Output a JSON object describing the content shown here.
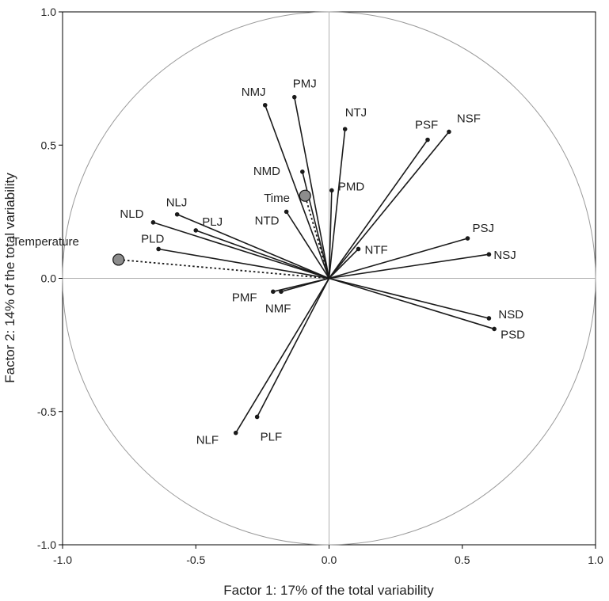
{
  "chart_data": {
    "type": "scatter",
    "subtype": "pca-correlation-circle",
    "xlabel": "Factor 1: 17% of the total variability",
    "ylabel": "Factor 2: 14% of the total variability",
    "xlim": [
      -1.0,
      1.0
    ],
    "ylim": [
      -1.0,
      1.0
    ],
    "xticks": [
      "-1.0",
      "-0.5",
      "0.0",
      "0.5",
      "1.0"
    ],
    "yticks": [
      "1.0",
      "0.5",
      "0.0",
      "-0.5",
      "-1.0"
    ],
    "grid": false,
    "unit_circle": true,
    "active_variables": [
      {
        "name": "NMJ",
        "x": -0.24,
        "y": 0.65
      },
      {
        "name": "PMJ",
        "x": -0.13,
        "y": 0.68
      },
      {
        "name": "NTJ",
        "x": 0.06,
        "y": 0.56
      },
      {
        "name": "PSF",
        "x": 0.37,
        "y": 0.52
      },
      {
        "name": "NSF",
        "x": 0.45,
        "y": 0.55
      },
      {
        "name": "NMD",
        "x": -0.1,
        "y": 0.4
      },
      {
        "name": "PMD",
        "x": 0.01,
        "y": 0.33
      },
      {
        "name": "NTD",
        "x": -0.16,
        "y": 0.25
      },
      {
        "name": "NLD",
        "x": -0.66,
        "y": 0.21
      },
      {
        "name": "NLJ",
        "x": -0.57,
        "y": 0.24
      },
      {
        "name": "PLJ",
        "x": -0.5,
        "y": 0.18
      },
      {
        "name": "PLD",
        "x": -0.64,
        "y": 0.11
      },
      {
        "name": "NTF",
        "x": 0.11,
        "y": 0.11
      },
      {
        "name": "PSJ",
        "x": 0.52,
        "y": 0.15
      },
      {
        "name": "NSJ",
        "x": 0.6,
        "y": 0.09
      },
      {
        "name": "NSD",
        "x": 0.6,
        "y": -0.15
      },
      {
        "name": "PSD",
        "x": 0.62,
        "y": -0.19
      },
      {
        "name": "PMF",
        "x": -0.21,
        "y": -0.05
      },
      {
        "name": "NMF",
        "x": -0.18,
        "y": -0.05
      },
      {
        "name": "NLF",
        "x": -0.35,
        "y": -0.58
      },
      {
        "name": "PLF",
        "x": -0.27,
        "y": -0.52
      }
    ],
    "supplementary_variables": [
      {
        "name": "Temperature",
        "x": -0.79,
        "y": 0.07
      },
      {
        "name": "Time",
        "x": -0.09,
        "y": 0.31
      }
    ],
    "colors": {
      "vector": "#1a1a1a",
      "circle": "#9a9a9a",
      "axes": "#b0b0b0",
      "supplementary_fill": "#8c8c8c"
    }
  }
}
